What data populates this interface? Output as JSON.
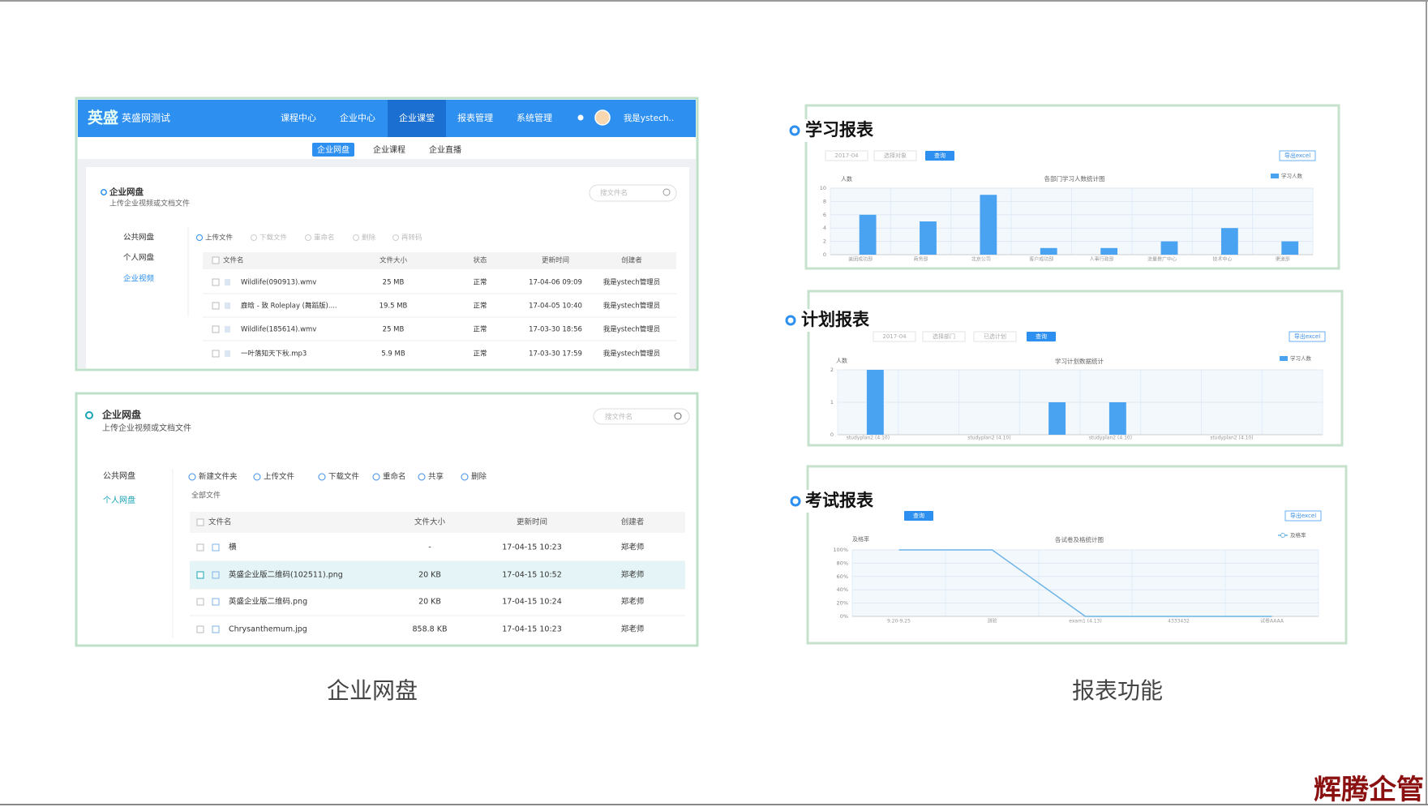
{
  "disk_top": {
    "logo": "英盛",
    "brand": "英盛网测试",
    "nav": [
      "课程中心",
      "企业中心",
      "企业课堂",
      "报表管理",
      "系统管理"
    ],
    "nav_active": 2,
    "user": "我是ystech..",
    "subnav": [
      "企业网盘",
      "企业课程",
      "企业直播"
    ],
    "subnav_active": 0,
    "title": "企业网盘",
    "subtitle": "上传企业视频或文档文件",
    "search": "搜文件名",
    "side": [
      "公共网盘",
      "个人网盘",
      "企业视频"
    ],
    "side_active": 2,
    "toolbar": [
      "上传文件",
      "下载文件",
      "重命名",
      "删除",
      "再转码"
    ],
    "columns": [
      "文件名",
      "文件大小",
      "状态",
      "更新时间",
      "创建者"
    ],
    "rows": [
      [
        "Wildlife(090913).wmv",
        "25 MB",
        "正常",
        "17-04-06 09:09",
        "我是ystech管理员"
      ],
      [
        "鹿晗 - 致 Roleplay (舞蹈版)....",
        "19.5 MB",
        "正常",
        "17-04-05 10:40",
        "我是ystech管理员"
      ],
      [
        "Wildlife(185614).wmv",
        "25 MB",
        "正常",
        "17-03-30 18:56",
        "我是ystech管理员"
      ],
      [
        "一叶落知天下秋.mp3",
        "5.9 MB",
        "正常",
        "17-03-30 17:59",
        "我是ystech管理员"
      ]
    ]
  },
  "disk_bottom": {
    "title": "企业网盘",
    "subtitle": "上传企业视频或文档文件",
    "search": "搜文件名",
    "side": [
      "公共网盘",
      "个人网盘"
    ],
    "side_active": 1,
    "toolbar": [
      "新建文件夹",
      "上传文件",
      "下载文件",
      "重命名",
      "共享",
      "删除"
    ],
    "breadcrumb": "全部文件",
    "columns": [
      "文件名",
      "文件大小",
      "更新时间",
      "创建者"
    ],
    "selected_row": 1,
    "rows": [
      [
        "横",
        "-",
        "17-04-15 10:23",
        "郑老师"
      ],
      [
        "英盛企业版二维码(102511).png",
        "20 KB",
        "17-04-15 10:52",
        "郑老师"
      ],
      [
        "英盛企业版二维码.png",
        "20 KB",
        "17-04-15 10:24",
        "郑老师"
      ],
      [
        "Chrysanthemum.jpg",
        "858.8 KB",
        "17-04-15 10:23",
        "郑老师"
      ]
    ]
  },
  "disk_caption": "企业网盘",
  "reports": [
    {
      "heading": "学习报表",
      "controls": [
        "2017-04",
        "选择对象"
      ],
      "query": "查询",
      "export": "导出excel",
      "chart": {
        "type": "bar",
        "title": "各部门学习人数统计图",
        "y_label": "人数",
        "categories": [
          "美团成功部",
          "商务部",
          "北京公司",
          "客户成功部",
          "人事行政部",
          "流量推广中心",
          "技术中心",
          "渠道部"
        ],
        "series": [
          {
            "name": "学习人数",
            "color": "#4aa3f0",
            "values": [
              6,
              5,
              9,
              1,
              1,
              2,
              4,
              2
            ]
          }
        ],
        "ylim": [
          0,
          10
        ],
        "yticks": [
          0,
          2,
          4,
          6,
          8,
          10
        ]
      }
    },
    {
      "heading": "计划报表",
      "controls": [
        "2017-04",
        "选择部门",
        "已选计划"
      ],
      "query": "查询",
      "export": "导出excel",
      "chart": {
        "type": "bar",
        "title": "学习计划数据统计",
        "y_label": "人数",
        "categories": [
          "studyplan2 (4.10)",
          null,
          "studyplan2 (4.10)",
          null,
          "studyplan2 (4.10)",
          null,
          "studyplan2 (4.10)",
          null
        ],
        "series": [
          {
            "name": "学习人数",
            "color": "#4aa3f0",
            "values": [
              2,
              0,
              0,
              1,
              1,
              0,
              0,
              0
            ]
          }
        ],
        "ylim": [
          0,
          2
        ],
        "yticks": [
          0,
          1,
          2
        ]
      }
    },
    {
      "heading": "考试报表",
      "controls": [],
      "query": "查询",
      "export": "导出excel",
      "chart": {
        "type": "line",
        "title": "各试卷及格统计图",
        "y_label": "及格率",
        "categories": [
          "9.20-9.25",
          "测验",
          "exam1 (4.13)",
          "4333432",
          "试卷AAAA"
        ],
        "series": [
          {
            "name": "及格率",
            "color": "#6db4e6",
            "values": [
              100,
              100,
              0,
              0,
              0
            ]
          }
        ],
        "ylim": [
          0,
          100
        ],
        "yticks": [
          {
            "value": 0,
            "label": "0%"
          },
          {
            "value": 20,
            "label": "20%"
          },
          {
            "value": 40,
            "label": "40%"
          },
          {
            "value": 60,
            "label": "60%"
          },
          {
            "value": 80,
            "label": "80%"
          },
          {
            "value": 100,
            "label": "100%"
          }
        ]
      }
    }
  ],
  "report_caption": "报表功能",
  "watermark": "辉腾企管"
}
